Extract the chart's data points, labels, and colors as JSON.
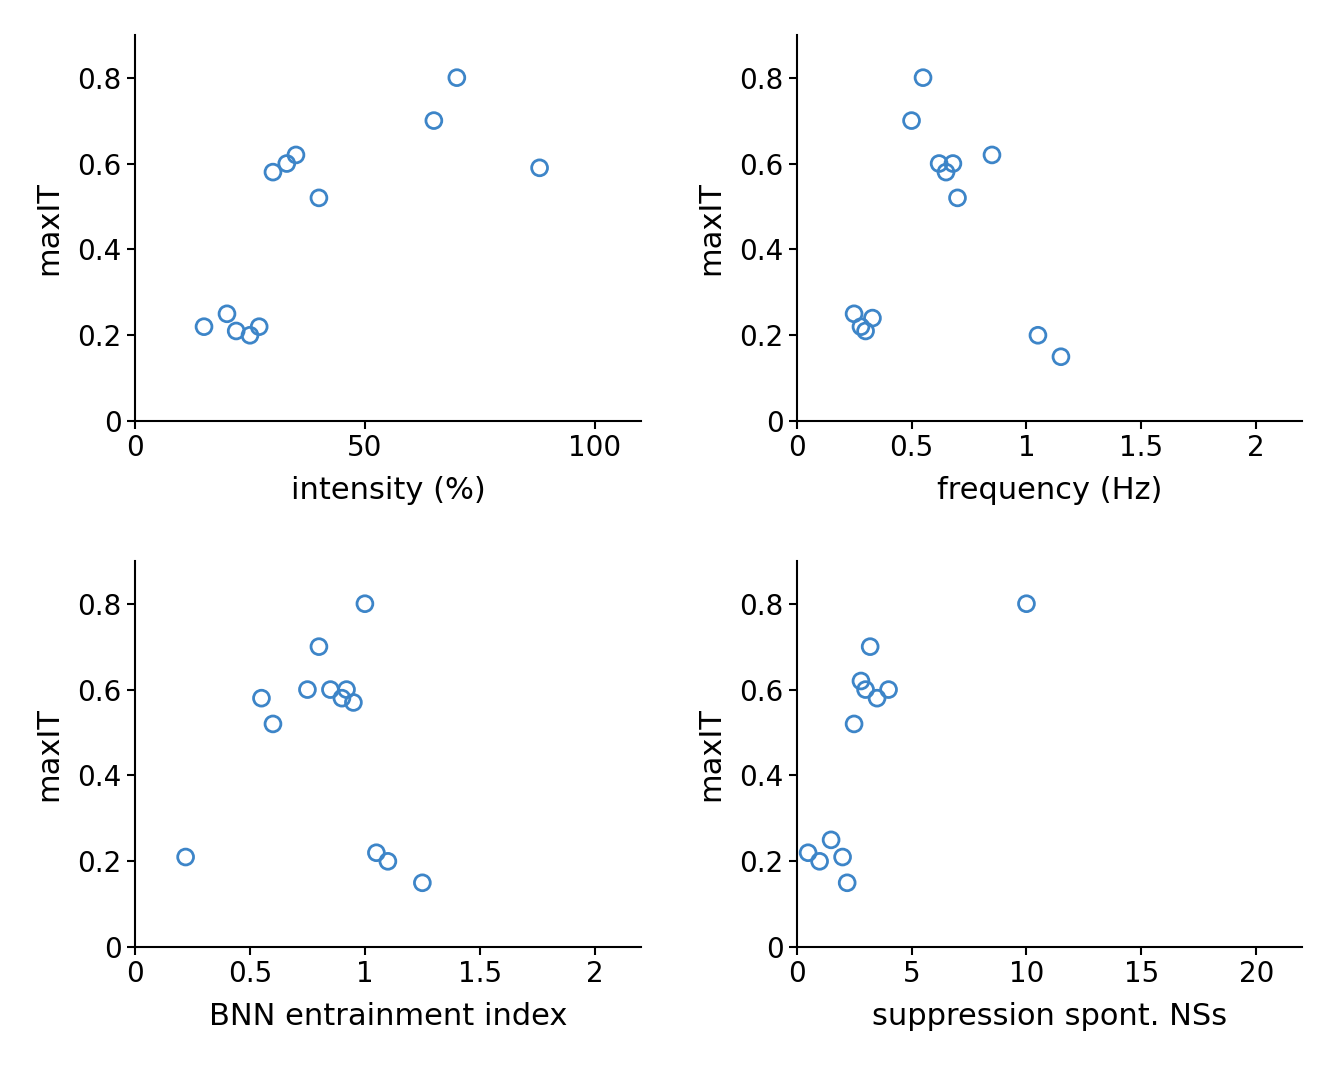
{
  "plot1": {
    "x": [
      15,
      20,
      22,
      25,
      27,
      30,
      33,
      35,
      40,
      65,
      70,
      88
    ],
    "y": [
      0.22,
      0.25,
      0.21,
      0.2,
      0.22,
      0.58,
      0.6,
      0.62,
      0.52,
      0.7,
      0.8,
      0.59
    ],
    "xlabel": "intensity (%)",
    "ylabel": "maxIT",
    "xlim": [
      0,
      110
    ],
    "ylim": [
      0,
      0.9
    ],
    "xticks": [
      0,
      50,
      100
    ],
    "yticks": [
      0,
      0.2,
      0.4,
      0.6,
      0.8
    ],
    "xticklabels": [
      "0",
      "50",
      "100"
    ],
    "yticklabels": [
      "0",
      "0.2",
      "0.4",
      "0.6",
      "0.8"
    ]
  },
  "plot2": {
    "x": [
      0.25,
      0.28,
      0.3,
      0.33,
      0.5,
      0.55,
      0.62,
      0.65,
      0.68,
      0.7,
      0.85,
      1.05,
      1.15
    ],
    "y": [
      0.25,
      0.22,
      0.21,
      0.24,
      0.7,
      0.8,
      0.6,
      0.58,
      0.6,
      0.52,
      0.62,
      0.2,
      0.15
    ],
    "xlabel": "frequency (Hz)",
    "ylabel": "maxIT",
    "xlim": [
      0,
      2.2
    ],
    "ylim": [
      0,
      0.9
    ],
    "xticks": [
      0,
      0.5,
      1,
      1.5,
      2
    ],
    "yticks": [
      0,
      0.2,
      0.4,
      0.6,
      0.8
    ],
    "xticklabels": [
      "0",
      "0.5",
      "1",
      "1.5",
      "2"
    ],
    "yticklabels": [
      "0",
      "0.2",
      "0.4",
      "0.6",
      "0.8"
    ]
  },
  "plot3": {
    "x": [
      0.22,
      0.55,
      0.6,
      0.75,
      0.8,
      0.85,
      0.9,
      0.92,
      0.95,
      1.0,
      1.05,
      1.1,
      1.25
    ],
    "y": [
      0.21,
      0.58,
      0.52,
      0.6,
      0.7,
      0.6,
      0.58,
      0.6,
      0.57,
      0.8,
      0.22,
      0.2,
      0.15
    ],
    "xlabel": "BNN entrainment index",
    "ylabel": "maxIT",
    "xlim": [
      0,
      2.2
    ],
    "ylim": [
      0,
      0.9
    ],
    "xticks": [
      0,
      0.5,
      1,
      1.5,
      2
    ],
    "yticks": [
      0,
      0.2,
      0.4,
      0.6,
      0.8
    ],
    "xticklabels": [
      "0",
      "0.5",
      "1",
      "1.5",
      "2"
    ],
    "yticklabels": [
      "0",
      "0.2",
      "0.4",
      "0.6",
      "0.8"
    ]
  },
  "plot4": {
    "x": [
      0.5,
      1.0,
      1.5,
      2.0,
      2.5,
      3.0,
      3.5,
      4.0,
      2.2,
      2.8,
      3.2,
      10.0
    ],
    "y": [
      0.22,
      0.2,
      0.25,
      0.21,
      0.52,
      0.6,
      0.58,
      0.6,
      0.15,
      0.62,
      0.7,
      0.8
    ],
    "xlabel": "suppression spont. NSs",
    "ylabel": "maxIT",
    "xlim": [
      0,
      22
    ],
    "ylim": [
      0,
      0.9
    ],
    "xticks": [
      0,
      5,
      10,
      15,
      20
    ],
    "yticks": [
      0,
      0.2,
      0.4,
      0.6,
      0.8
    ],
    "xticklabels": [
      "0",
      "5",
      "10",
      "15",
      "20"
    ],
    "yticklabels": [
      "0",
      "0.2",
      "0.4",
      "0.6",
      "0.8"
    ]
  },
  "marker_color": "#3d85c8",
  "marker_size": 130,
  "marker_lw": 2.0,
  "bg_color": "#ffffff",
  "tick_fontsize": 20,
  "label_fontsize": 22,
  "spine_lw": 1.5
}
